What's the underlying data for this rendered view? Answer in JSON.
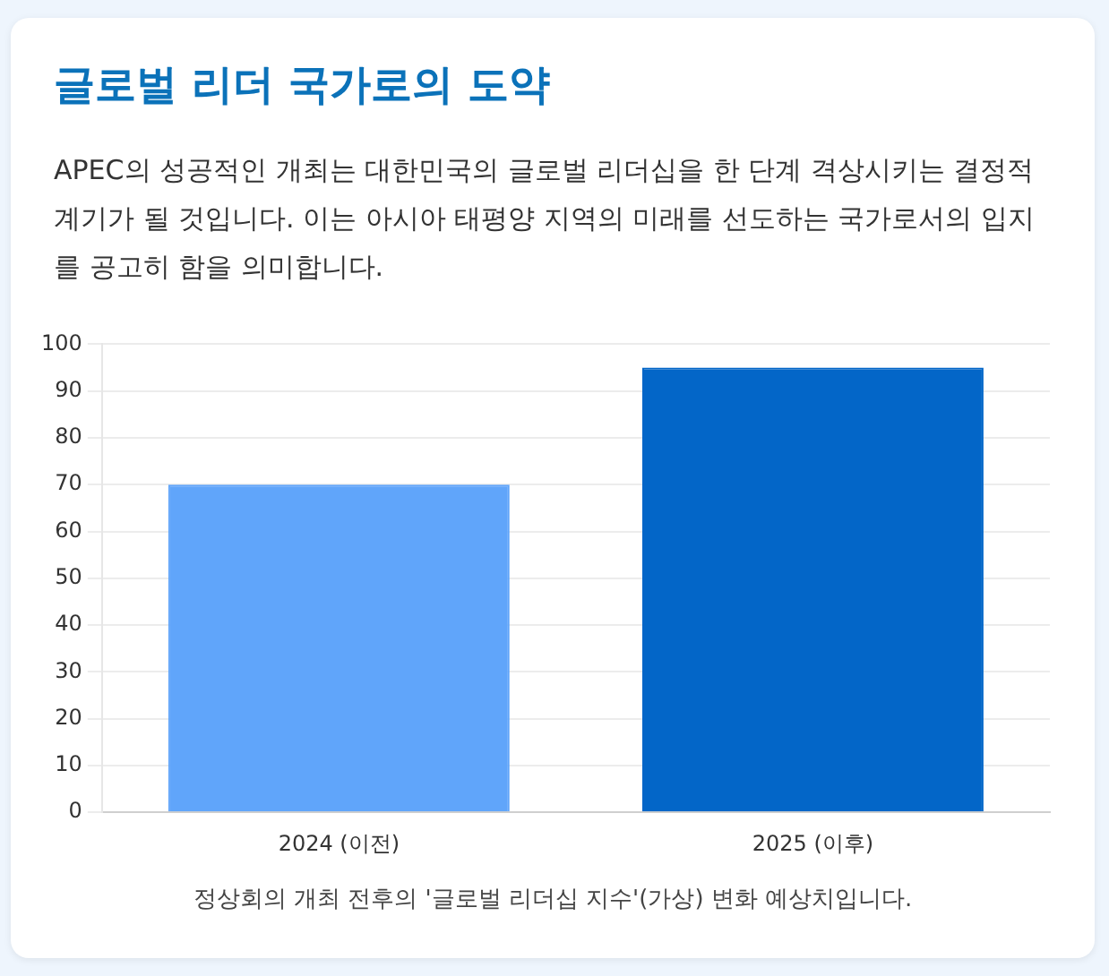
{
  "chart_data": {
    "type": "bar",
    "title": "글로벌 리더 국가로의 도약",
    "subtitle": "APEC의 성공적인 개최는 대한민국의 글로벌 리더십을 한 단계 격상시키는 결정적 계기가 될 것입니다. 이는 아시아 태평양 지역의 미래를 선도하는 국가로서의 입지를 공고히 함을 의미합니다.",
    "categories": [
      "2024 (이전)",
      "2025 (이후)"
    ],
    "values": [
      70,
      95
    ],
    "colors": [
      "#60a5fa",
      "#0366c8"
    ],
    "ylim": [
      0,
      100
    ],
    "yticks": [
      0,
      10,
      20,
      30,
      40,
      50,
      60,
      70,
      80,
      90,
      100
    ],
    "grid": "y",
    "legend": false,
    "annotations": [
      "정상회의 개최 전후의 '글로벌 리더십 지수'(가상) 변화 예상치입니다."
    ]
  }
}
